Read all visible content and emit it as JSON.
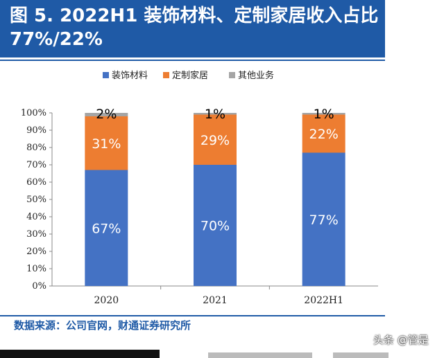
{
  "header": {
    "title": "图 5. 2022H1  装饰材料、定制家居收入占比 77%/22%"
  },
  "source": "数据来源：公司官网，财通证券研究所",
  "watermark": "头条 @管是",
  "colors": {
    "header_bg": "#1f5aa6",
    "series": [
      "#4472c4",
      "#ed7d31",
      "#a5a5a5"
    ]
  },
  "chart_data": {
    "type": "bar",
    "stacked": true,
    "categories": [
      "2020",
      "2021",
      "2022H1"
    ],
    "series": [
      {
        "name": "装饰材料",
        "values": [
          67,
          70,
          77
        ],
        "labels": [
          "67%",
          "70%",
          "77%"
        ]
      },
      {
        "name": "定制家居",
        "values": [
          31,
          29,
          22
        ],
        "labels": [
          "31%",
          "29%",
          "22%"
        ]
      },
      {
        "name": "其他业务",
        "values": [
          2,
          1,
          1
        ],
        "labels": [
          "2%",
          "1%",
          "1%"
        ]
      }
    ],
    "ylim": [
      0,
      100
    ],
    "yticks": [
      "0%",
      "10%",
      "20%",
      "30%",
      "40%",
      "50%",
      "60%",
      "70%",
      "80%",
      "90%",
      "100%"
    ],
    "grid": false,
    "legend_position": "top"
  }
}
